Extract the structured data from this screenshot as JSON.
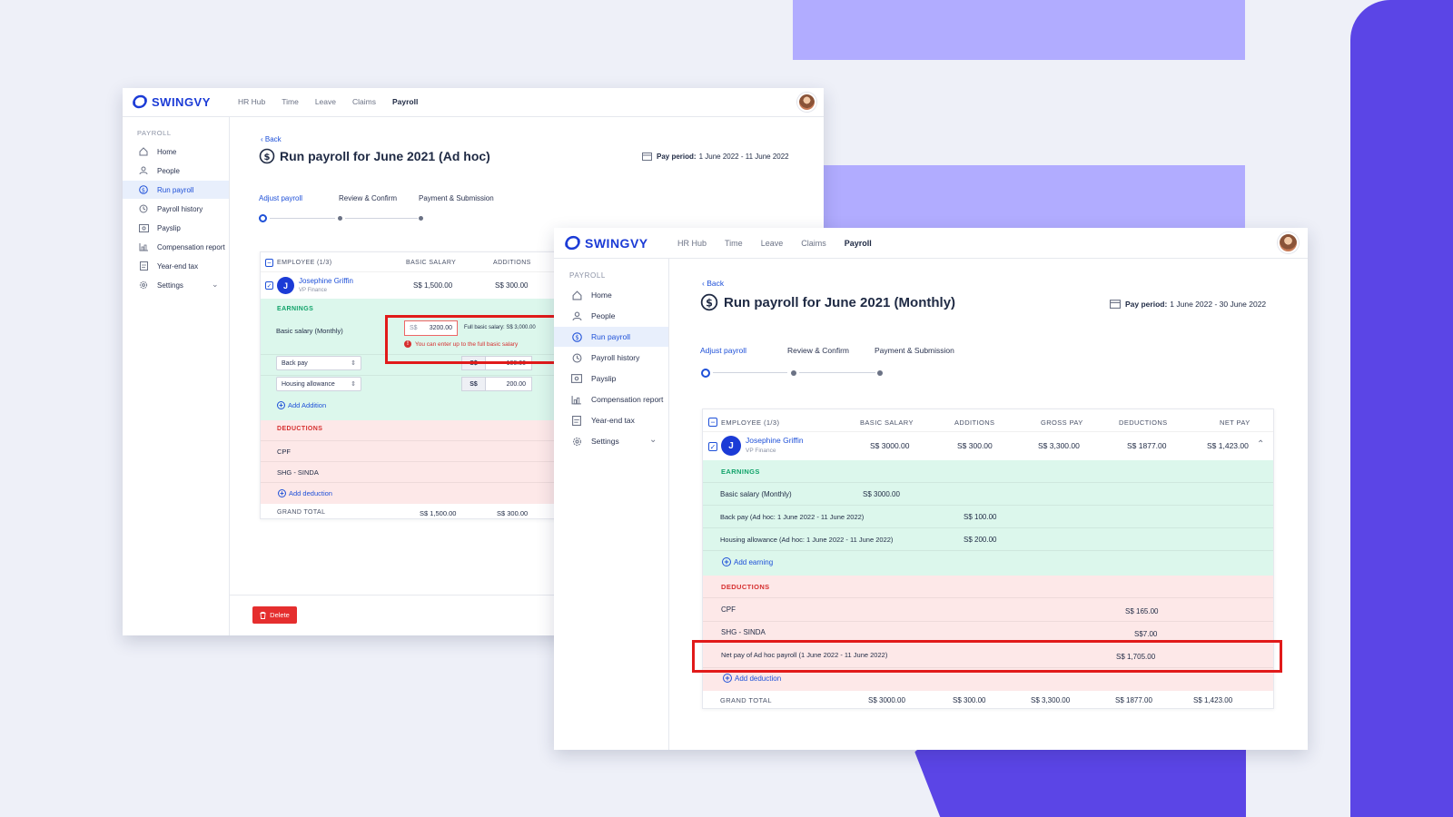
{
  "brand": {
    "name": "SWINGVY",
    "accent": "#1e50d8",
    "danger": "#e52e2e"
  },
  "nav": [
    "HR Hub",
    "Time",
    "Leave",
    "Claims",
    "Payroll"
  ],
  "sidebar": {
    "section": "PAYROLL",
    "items": [
      {
        "label": "Home",
        "icon": "home-icon"
      },
      {
        "label": "People",
        "icon": "person-icon"
      },
      {
        "label": "Run payroll",
        "icon": "dollar-circle-icon",
        "active": true
      },
      {
        "label": "Payroll history",
        "icon": "history-icon"
      },
      {
        "label": "Payslip",
        "icon": "payslip-icon"
      },
      {
        "label": "Compensation report",
        "icon": "chart-icon"
      },
      {
        "label": "Year-end tax",
        "icon": "document-icon"
      },
      {
        "label": "Settings",
        "icon": "gear-icon"
      }
    ]
  },
  "back_label": "Back",
  "steps": [
    "Adjust payroll",
    "Review & Confirm",
    "Payment & Submission"
  ],
  "pay_period_label": "Pay period:",
  "adhoc": {
    "title": "Run payroll for June 2021 (Ad hoc)",
    "pay_period": "1 June 2022 - 11 June 2022",
    "headers": {
      "employee": "EMPLOYEE (1/3)",
      "basic_salary": "BASIC SALARY",
      "additions": "ADDITIONS"
    },
    "employee": {
      "initial": "J",
      "name": "Josephine Griffin",
      "role": "VP Finance",
      "basic_salary": "S$ 1,500.00",
      "additions": "S$ 300.00"
    },
    "earnings_title": "EARNINGS",
    "basic_salary_label": "Basic salary (Monthly)",
    "currency": "S$",
    "basic_salary_input": "3200.00",
    "full_basic_salary": "Full basic salary: S$ 3,000.00",
    "error": "You can enter up to the full basic salary",
    "additions": [
      {
        "type": "Back pay",
        "amount": "100.00"
      },
      {
        "type": "Housing allowance",
        "amount": "200.00"
      }
    ],
    "add_addition": "Add Addition",
    "deductions_title": "DEDUCTIONS",
    "deductions": [
      "CPF",
      "SHG - SINDA"
    ],
    "add_deduction": "Add deduction",
    "grand_total_label": "GRAND TOTAL",
    "grand_total_basic": "S$ 1,500.00",
    "grand_total_additions": "S$ 300.00",
    "delete_label": "Delete"
  },
  "monthly": {
    "title": "Run payroll for June 2021 (Monthly)",
    "pay_period": "1 June 2022 - 30 June 2022",
    "headers": {
      "employee": "EMPLOYEE (1/3)",
      "basic_salary": "BASIC SALARY",
      "additions": "ADDITIONS",
      "gross_pay": "GROSS PAY",
      "deductions": "DEDUCTIONS",
      "net_pay": "NET PAY"
    },
    "employee": {
      "initial": "J",
      "name": "Josephine Griffin",
      "role": "VP Finance",
      "basic_salary": "S$ 3000.00",
      "additions": "S$ 300.00",
      "gross_pay": "S$ 3,300.00",
      "deductions": "S$ 1877.00",
      "net_pay": "S$ 1,423.00"
    },
    "earnings_title": "EARNINGS",
    "earnings": [
      {
        "label": "Basic salary (Monthly)",
        "amount": "S$ 3000.00"
      },
      {
        "label": "Back pay (Ad hoc: 1 June 2022 - 11 June 2022)",
        "amount": "S$ 100.00"
      },
      {
        "label": "Housing allowance (Ad hoc: 1 June 2022 - 11 June 2022)",
        "amount": "S$ 200.00"
      }
    ],
    "add_earning": "Add earning",
    "deductions_title": "DEDUCTIONS",
    "deductions": [
      {
        "label": "CPF",
        "amount": "S$ 165.00"
      },
      {
        "label": "SHG - SINDA",
        "amount": "S$7.00"
      },
      {
        "label": "Net pay of Ad hoc payroll (1 June 2022 - 11 June 2022)",
        "amount": "S$ 1,705.00"
      }
    ],
    "add_deduction": "Add deduction",
    "grand_total_label": "GRAND TOTAL",
    "grand_total": {
      "basic_salary": "S$ 3000.00",
      "additions": "S$ 300.00",
      "gross_pay": "S$ 3,300.00",
      "deductions": "S$ 1877.00",
      "net_pay": "S$ 1,423.00"
    }
  }
}
